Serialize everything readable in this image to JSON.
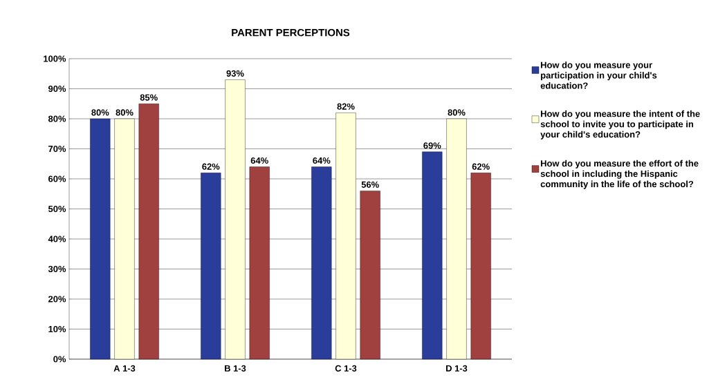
{
  "chart_data": {
    "type": "bar",
    "title": "PARENT PERCEPTIONS",
    "categories": [
      "A 1-3",
      "B 1-3",
      "C 1-3",
      "D 1-3"
    ],
    "series": [
      {
        "name": "How do you measure your participation in your child's education?",
        "color": "#2b3d9a",
        "values": [
          80,
          62,
          64,
          69
        ],
        "value_labels": [
          "80%",
          "62%",
          "64%",
          "69%"
        ]
      },
      {
        "name": "How do you measure the intent of the school to invite you to participate in your child's education?",
        "color": "#ffffd8",
        "values": [
          80,
          93,
          82,
          80
        ],
        "value_labels": [
          "80%",
          "93%",
          "82%",
          "80%"
        ]
      },
      {
        "name": "How do you measure the effort of the school in including the Hispanic community in the life of the school?",
        "color": "#a0403f",
        "values": [
          85,
          64,
          56,
          62
        ],
        "value_labels": [
          "85%",
          "64%",
          "56%",
          "62%"
        ]
      }
    ],
    "ylim": [
      0,
      100
    ],
    "yticks": [
      {
        "value": 0,
        "label": "0%"
      },
      {
        "value": 10,
        "label": "10%"
      },
      {
        "value": 20,
        "label": "20%"
      },
      {
        "value": 30,
        "label": "30%"
      },
      {
        "value": 40,
        "label": "40%"
      },
      {
        "value": 50,
        "label": "50%"
      },
      {
        "value": 60,
        "label": "60%"
      },
      {
        "value": 70,
        "label": "70%"
      },
      {
        "value": 80,
        "label": "80%"
      },
      {
        "value": 90,
        "label": "90%"
      },
      {
        "value": 100,
        "label": "100%"
      }
    ],
    "grid": "y",
    "legend": "right"
  }
}
